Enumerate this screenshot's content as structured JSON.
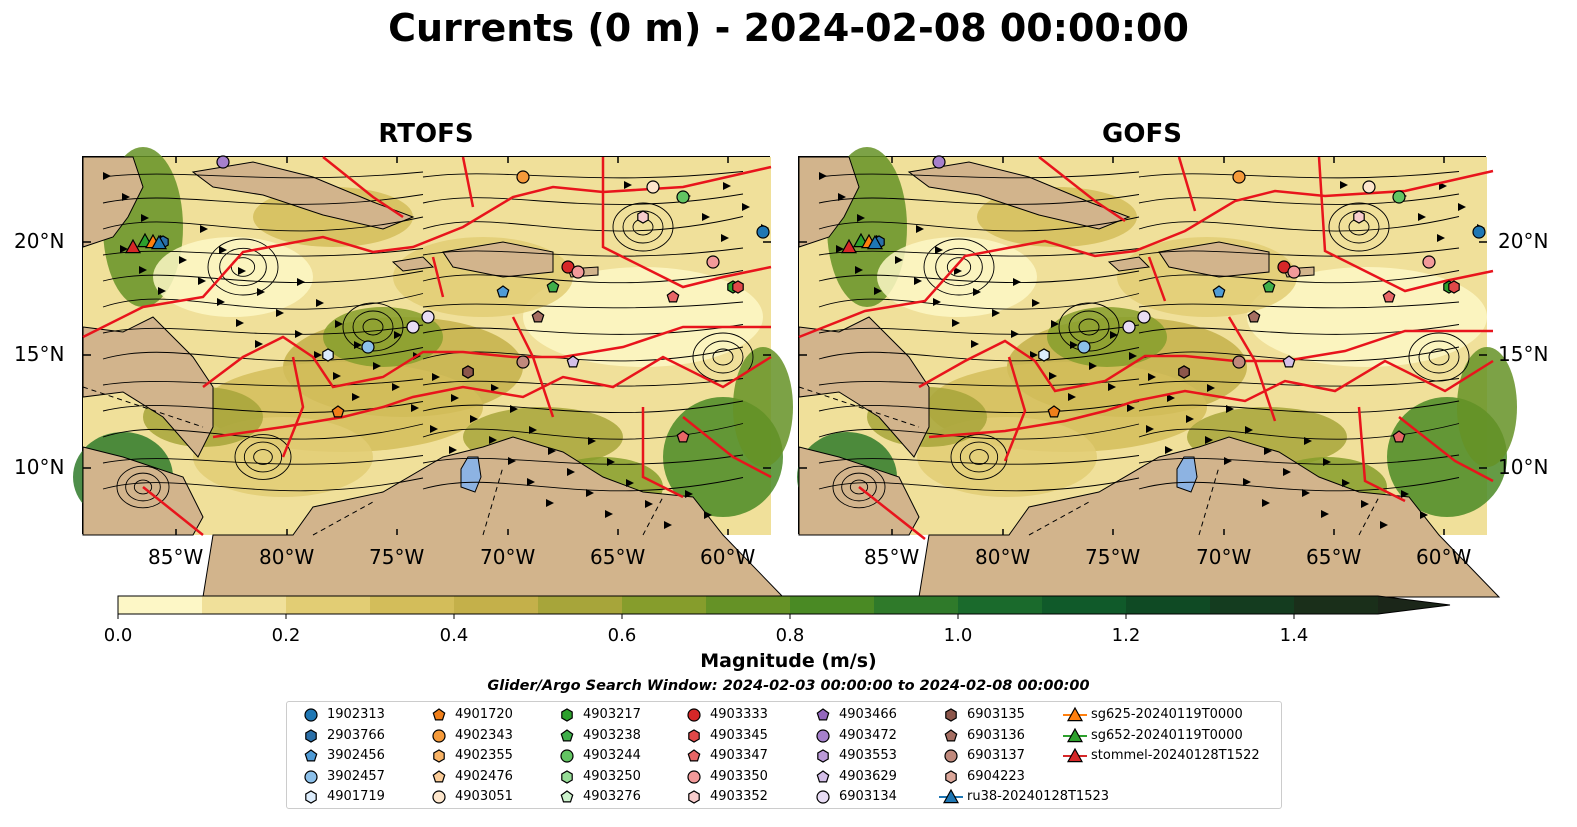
{
  "title": "Currents (0 m) - 2024-02-08 00:00:00",
  "panels": [
    {
      "name": "RTOFS"
    },
    {
      "name": "GOFS"
    }
  ],
  "lon_ticks": [
    "85°W",
    "80°W",
    "75°W",
    "70°W",
    "65°W",
    "60°W"
  ],
  "lat_ticks": [
    "20°N",
    "15°N",
    "10°N"
  ],
  "colors": {
    "land": "#d2b48c",
    "current_line": "#e8141c",
    "streamline": "#000000",
    "lake": "#8db3e2",
    "colormap": [
      "#fdf7c6",
      "#f0e09a",
      "#e2cd74",
      "#d3bd5a",
      "#c4b04a",
      "#a7a53a",
      "#869d2c",
      "#659226",
      "#4a8a24",
      "#2f7a2a",
      "#1a6a2c",
      "#105a2a",
      "#0f4a24",
      "#143c1f",
      "#1a2f1a",
      "#1b2619"
    ]
  },
  "colorbar": {
    "label": "Magnitude (m/s)",
    "ticks": [
      "0.0",
      "0.2",
      "0.4",
      "0.6",
      "0.8",
      "1.0",
      "1.2",
      "1.4"
    ],
    "range": [
      0,
      1.5
    ],
    "extend": "max"
  },
  "search_window": "Glider/Argo Search Window: 2024-02-03 00:00:00 to 2024-02-08 00:00:00",
  "legend": [
    {
      "label": "1902313",
      "marker": "circle",
      "color": "#1f77b4"
    },
    {
      "label": "2903766",
      "marker": "hexagon",
      "color": "#2a6fa8"
    },
    {
      "label": "3902456",
      "marker": "pentagon",
      "color": "#4f9bd6"
    },
    {
      "label": "3902457",
      "marker": "circle",
      "color": "#8cc0ea"
    },
    {
      "label": "4901719",
      "marker": "hexagon",
      "color": "#dcecfb"
    },
    {
      "label": "4901720",
      "marker": "pentagon",
      "color": "#f07f1a"
    },
    {
      "label": "4902343",
      "marker": "circle",
      "color": "#f59a3a"
    },
    {
      "label": "4902355",
      "marker": "hexagon",
      "color": "#f8b366"
    },
    {
      "label": "4902476",
      "marker": "pentagon",
      "color": "#fbcc98"
    },
    {
      "label": "4903051",
      "marker": "circle",
      "color": "#fde6cc"
    },
    {
      "label": "4903217",
      "marker": "hexagon",
      "color": "#2ca02c"
    },
    {
      "label": "4903238",
      "marker": "pentagon",
      "color": "#3fae4a"
    },
    {
      "label": "4903244",
      "marker": "circle",
      "color": "#62c462"
    },
    {
      "label": "4903250",
      "marker": "hexagon",
      "color": "#96dc96"
    },
    {
      "label": "4903276",
      "marker": "pentagon",
      "color": "#ccf2cc"
    },
    {
      "label": "4903333",
      "marker": "circle",
      "color": "#d62728"
    },
    {
      "label": "4903345",
      "marker": "hexagon",
      "color": "#e04848"
    },
    {
      "label": "4903347",
      "marker": "pentagon",
      "color": "#e86666"
    },
    {
      "label": "4903350",
      "marker": "circle",
      "color": "#f29a9a"
    },
    {
      "label": "4903352",
      "marker": "hexagon",
      "color": "#f8cccc"
    },
    {
      "label": "4903466",
      "marker": "pentagon",
      "color": "#9467bd"
    },
    {
      "label": "4903472",
      "marker": "circle",
      "color": "#a680cc"
    },
    {
      "label": "4903553",
      "marker": "hexagon",
      "color": "#bb9ad8"
    },
    {
      "label": "4903629",
      "marker": "pentagon",
      "color": "#d4bfe8"
    },
    {
      "label": "6903134",
      "marker": "circle",
      "color": "#e8dcf4"
    },
    {
      "label": "6903135",
      "marker": "hexagon",
      "color": "#8c564b"
    },
    {
      "label": "6903136",
      "marker": "pentagon",
      "color": "#a56e62"
    },
    {
      "label": "6903137",
      "marker": "circle",
      "color": "#c0897c"
    },
    {
      "label": "6904223",
      "marker": "hexagon",
      "color": "#dba79a"
    },
    {
      "label": "ru38-20240128T1523",
      "marker": "triangle-line",
      "color": "#1f77b4"
    },
    {
      "label": "sg625-20240119T0000",
      "marker": "triangle-line",
      "color": "#ff7f0e"
    },
    {
      "label": "sg652-20240119T0000",
      "marker": "triangle-line",
      "color": "#2ca02c"
    },
    {
      "label": "stommel-20240128T1522",
      "marker": "triangle-line",
      "color": "#d62728"
    }
  ]
}
